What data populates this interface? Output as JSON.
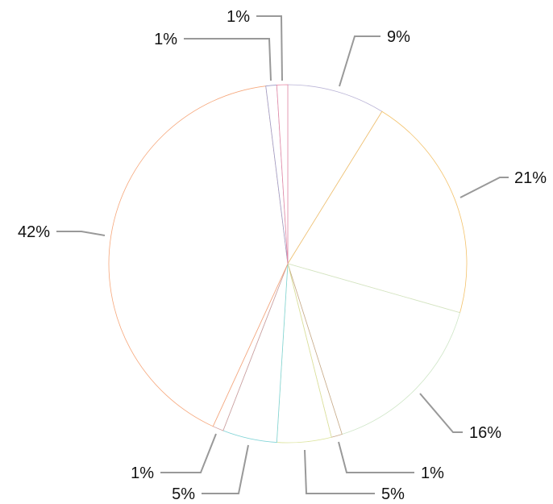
{
  "chart_data": {
    "type": "pie",
    "start": "top",
    "direction": "clockwise",
    "legend": "none",
    "slices": [
      {
        "value": 9,
        "label": "9%",
        "color": "#b9b3d6"
      },
      {
        "value": 21,
        "label": "21%",
        "color": "#f3c26b"
      },
      {
        "value": 16,
        "label": "16%",
        "color": "#cfe6c7"
      },
      {
        "value": 1,
        "label": "1%",
        "color": "#c8a888"
      },
      {
        "value": 5,
        "label": "5%",
        "color": "#dbe39a"
      },
      {
        "value": 5,
        "label": "5%",
        "color": "#7ed3d6"
      },
      {
        "value": 1,
        "label": "1%",
        "color": "#d19a9a"
      },
      {
        "value": 42,
        "label": "42%",
        "color": "#f6a77b"
      },
      {
        "value": 1,
        "label": "1%",
        "color": "#9c9ac6"
      },
      {
        "value": 1,
        "label": "1%",
        "color": "#e58aa6"
      }
    ]
  }
}
